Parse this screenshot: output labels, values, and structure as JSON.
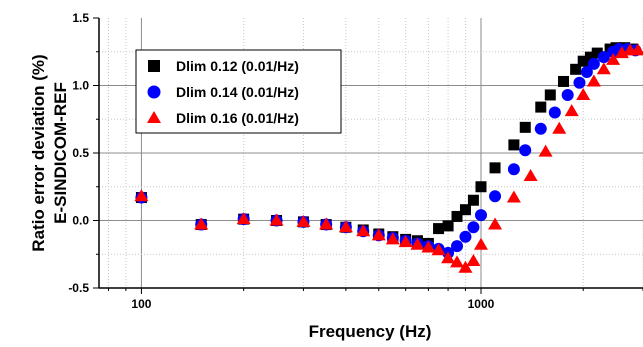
{
  "chart_data": {
    "type": "scatter",
    "xscale": "log",
    "xlim": [
      75,
      3000
    ],
    "ylim": [
      -0.5,
      1.5
    ],
    "grid": true,
    "legend_position": "top-left",
    "xlabel": "Frequency (Hz)",
    "ylabel_lines": [
      "Ratio error deviation (%)",
      "E-SINDICOM-REF"
    ],
    "x_ticks": [
      100,
      1000
    ],
    "x_tick_labels": [
      "100",
      "1000"
    ],
    "y_ticks": [
      -0.5,
      0.0,
      0.5,
      1.0,
      1.5
    ],
    "y_tick_labels": [
      "-0.5",
      "0.0",
      "0.5",
      "1.0",
      "1.5"
    ],
    "series": [
      {
        "name": "Dlim 0.12 (0.01/Hz)",
        "marker": "square",
        "color": "#000000",
        "points": [
          [
            100,
            0.17
          ],
          [
            150,
            -0.03
          ],
          [
            200,
            0.01
          ],
          [
            250,
            0.0
          ],
          [
            300,
            -0.01
          ],
          [
            350,
            -0.03
          ],
          [
            400,
            -0.05
          ],
          [
            450,
            -0.07
          ],
          [
            500,
            -0.1
          ],
          [
            550,
            -0.12
          ],
          [
            600,
            -0.14
          ],
          [
            650,
            -0.15
          ],
          [
            700,
            -0.17
          ],
          [
            750,
            -0.06
          ],
          [
            800,
            -0.04
          ],
          [
            850,
            0.03
          ],
          [
            900,
            0.08
          ],
          [
            950,
            0.15
          ],
          [
            1000,
            0.25
          ],
          [
            1100,
            0.39
          ],
          [
            1250,
            0.56
          ],
          [
            1350,
            0.69
          ],
          [
            1500,
            0.84
          ],
          [
            1600,
            0.93
          ],
          [
            1750,
            1.03
          ],
          [
            1900,
            1.12
          ],
          [
            2000,
            1.18
          ],
          [
            2100,
            1.21
          ],
          [
            2200,
            1.24
          ],
          [
            2400,
            1.27
          ],
          [
            2500,
            1.28
          ],
          [
            2650,
            1.28
          ],
          [
            2800,
            1.27
          ]
        ]
      },
      {
        "name": "Dlim 0.14 (0.01/Hz)",
        "marker": "circle",
        "color": "#0000ff",
        "points": [
          [
            100,
            0.17
          ],
          [
            150,
            -0.03
          ],
          [
            200,
            0.01
          ],
          [
            250,
            0.0
          ],
          [
            300,
            -0.01
          ],
          [
            350,
            -0.03
          ],
          [
            400,
            -0.05
          ],
          [
            450,
            -0.08
          ],
          [
            500,
            -0.11
          ],
          [
            550,
            -0.13
          ],
          [
            600,
            -0.15
          ],
          [
            650,
            -0.17
          ],
          [
            700,
            -0.19
          ],
          [
            750,
            -0.21
          ],
          [
            800,
            -0.24
          ],
          [
            850,
            -0.19
          ],
          [
            900,
            -0.12
          ],
          [
            950,
            -0.05
          ],
          [
            1000,
            0.04
          ],
          [
            1100,
            0.18
          ],
          [
            1250,
            0.38
          ],
          [
            1350,
            0.52
          ],
          [
            1500,
            0.68
          ],
          [
            1650,
            0.8
          ],
          [
            1800,
            0.93
          ],
          [
            1950,
            1.02
          ],
          [
            2050,
            1.1
          ],
          [
            2150,
            1.16
          ],
          [
            2300,
            1.21
          ],
          [
            2450,
            1.25
          ],
          [
            2550,
            1.27
          ],
          [
            2700,
            1.27
          ],
          [
            2850,
            1.26
          ]
        ]
      },
      {
        "name": "Dlim 0.16 (0.01/Hz)",
        "marker": "triangle",
        "color": "#ff0000",
        "points": [
          [
            100,
            0.18
          ],
          [
            150,
            -0.03
          ],
          [
            200,
            0.01
          ],
          [
            250,
            0.0
          ],
          [
            300,
            -0.01
          ],
          [
            350,
            -0.03
          ],
          [
            400,
            -0.05
          ],
          [
            450,
            -0.08
          ],
          [
            500,
            -0.11
          ],
          [
            550,
            -0.14
          ],
          [
            600,
            -0.16
          ],
          [
            650,
            -0.18
          ],
          [
            700,
            -0.2
          ],
          [
            750,
            -0.22
          ],
          [
            800,
            -0.28
          ],
          [
            850,
            -0.31
          ],
          [
            900,
            -0.35
          ],
          [
            950,
            -0.3
          ],
          [
            1000,
            -0.18
          ],
          [
            1100,
            -0.03
          ],
          [
            1250,
            0.17
          ],
          [
            1400,
            0.33
          ],
          [
            1550,
            0.51
          ],
          [
            1700,
            0.68
          ],
          [
            1850,
            0.81
          ],
          [
            2000,
            0.93
          ],
          [
            2150,
            1.03
          ],
          [
            2300,
            1.12
          ],
          [
            2450,
            1.19
          ],
          [
            2600,
            1.24
          ],
          [
            2750,
            1.26
          ],
          [
            2900,
            1.26
          ]
        ]
      }
    ]
  }
}
